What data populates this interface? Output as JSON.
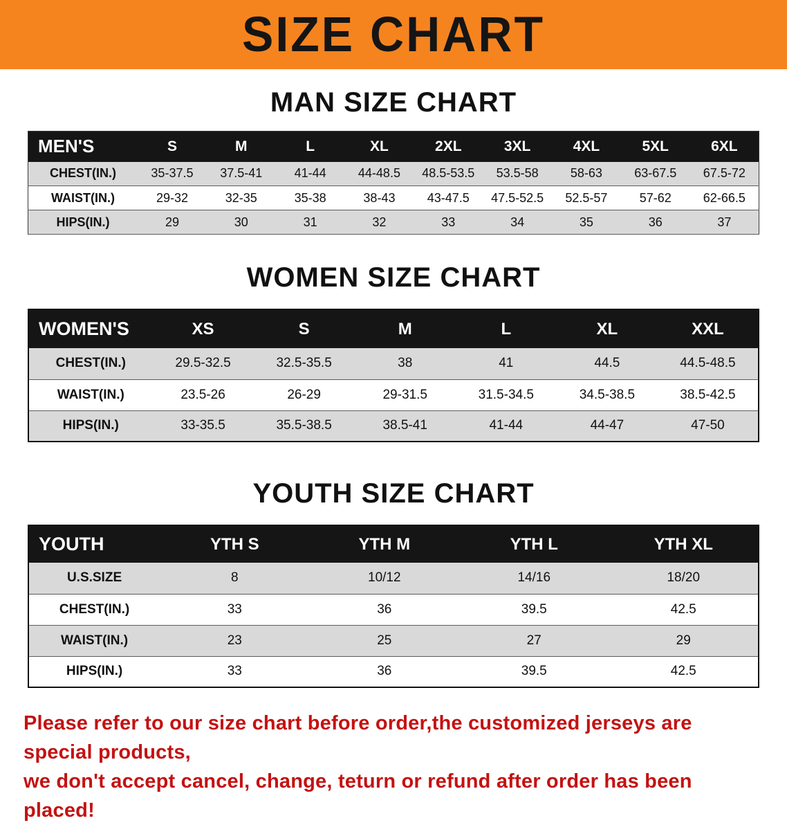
{
  "banner": {
    "title": "SIZE CHART"
  },
  "colors": {
    "banner_bg": "#f5841f",
    "table_header_bg": "#151515",
    "table_header_text": "#ffffff",
    "row_stripe": "#d9d9d9",
    "disclaimer_text": "#c41212"
  },
  "tables": {
    "men": {
      "heading": "MAN SIZE CHART",
      "header": [
        "MEN'S",
        "S",
        "M",
        "L",
        "XL",
        "2XL",
        "3XL",
        "4XL",
        "5XL",
        "6XL"
      ],
      "rows": [
        {
          "label": "CHEST(IN.)",
          "values": [
            "35-37.5",
            "37.5-41",
            "41-44",
            "44-48.5",
            "48.5-53.5",
            "53.5-58",
            "58-63",
            "63-67.5",
            "67.5-72"
          ]
        },
        {
          "label": "WAIST(IN.)",
          "values": [
            "29-32",
            "32-35",
            "35-38",
            "38-43",
            "43-47.5",
            "47.5-52.5",
            "52.5-57",
            "57-62",
            "62-66.5"
          ]
        },
        {
          "label": "HIPS(IN.)",
          "values": [
            "29",
            "30",
            "31",
            "32",
            "33",
            "34",
            "35",
            "36",
            "37"
          ]
        }
      ]
    },
    "women": {
      "heading": "WOMEN SIZE CHART",
      "header": [
        "WOMEN'S",
        "XS",
        "S",
        "M",
        "L",
        "XL",
        "XXL"
      ],
      "rows": [
        {
          "label": "CHEST(IN.)",
          "values": [
            "29.5-32.5",
            "32.5-35.5",
            "38",
            "41",
            "44.5",
            "44.5-48.5"
          ]
        },
        {
          "label": "WAIST(IN.)",
          "values": [
            "23.5-26",
            "26-29",
            "29-31.5",
            "31.5-34.5",
            "34.5-38.5",
            "38.5-42.5"
          ]
        },
        {
          "label": "HIPS(IN.)",
          "values": [
            "33-35.5",
            "35.5-38.5",
            "38.5-41",
            "41-44",
            "44-47",
            "47-50"
          ]
        }
      ]
    },
    "youth": {
      "heading": "YOUTH SIZE CHART",
      "header": [
        "YOUTH",
        "YTH S",
        "YTH M",
        "YTH L",
        "YTH XL"
      ],
      "rows": [
        {
          "label": "U.S.SIZE",
          "values": [
            "8",
            "10/12",
            "14/16",
            "18/20"
          ]
        },
        {
          "label": "CHEST(IN.)",
          "values": [
            "33",
            "36",
            "39.5",
            "42.5"
          ]
        },
        {
          "label": "WAIST(IN.)",
          "values": [
            "23",
            "25",
            "27",
            "29"
          ]
        },
        {
          "label": "HIPS(IN.)",
          "values": [
            "33",
            "36",
            "39.5",
            "42.5"
          ]
        }
      ]
    }
  },
  "disclaimer": {
    "line1": "Please refer to our size chart before order,the customized jerseys are special products,",
    "line2": "we don't accept cancel, change, teturn or refund after order has been placed!"
  }
}
